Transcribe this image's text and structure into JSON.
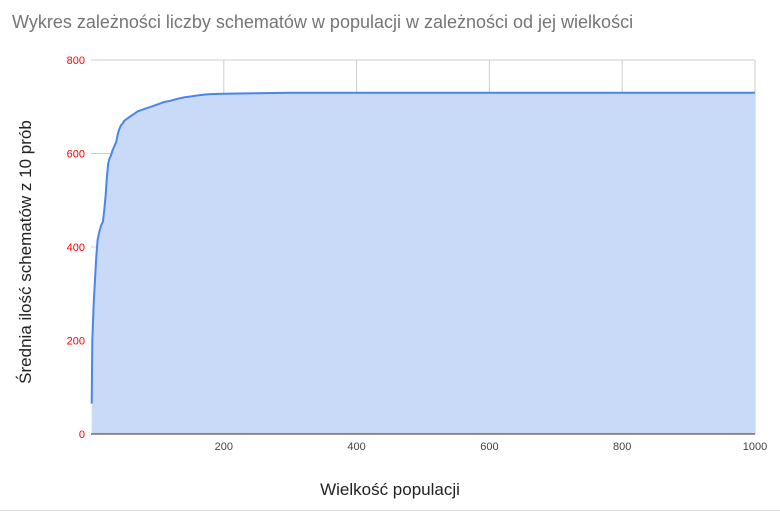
{
  "chart_data": {
    "type": "area",
    "title": "Wykres zależności liczby schematów w populacji w zależności od jej wielkości",
    "xlabel": "Wielkość populacji",
    "ylabel": "Średnia ilość schematów z 10 prób",
    "xlim": [
      0,
      1000
    ],
    "ylim": [
      0,
      800
    ],
    "x_ticks": [
      "200",
      "400",
      "600",
      "800",
      "1000"
    ],
    "y_ticks": [
      "0",
      "200",
      "400",
      "600",
      "800"
    ],
    "grid": true,
    "legend": "none",
    "colors": {
      "line": "#4a86e8",
      "fill": "#c9daf8",
      "grid": "#cccccc",
      "y_tick_labels": "#ff0000"
    },
    "series": [
      {
        "x": [
          1,
          2,
          4,
          6,
          8,
          10,
          12,
          15,
          18,
          20,
          22,
          24,
          26,
          28,
          30,
          32,
          35,
          38,
          40,
          42,
          45,
          48,
          50,
          55,
          60,
          65,
          70,
          80,
          90,
          100,
          110,
          120,
          130,
          140,
          150,
          160,
          170,
          180,
          200,
          250,
          300,
          400,
          500,
          600,
          700,
          800,
          900,
          1000
        ],
        "y": [
          65,
          200,
          280,
          330,
          380,
          415,
          430,
          445,
          455,
          480,
          510,
          550,
          580,
          590,
          595,
          605,
          615,
          625,
          640,
          650,
          660,
          665,
          670,
          675,
          680,
          685,
          690,
          695,
          700,
          705,
          710,
          713,
          717,
          720,
          722,
          724,
          726,
          727,
          728,
          729,
          730,
          730,
          730,
          730,
          730,
          730,
          730,
          730
        ]
      }
    ]
  }
}
